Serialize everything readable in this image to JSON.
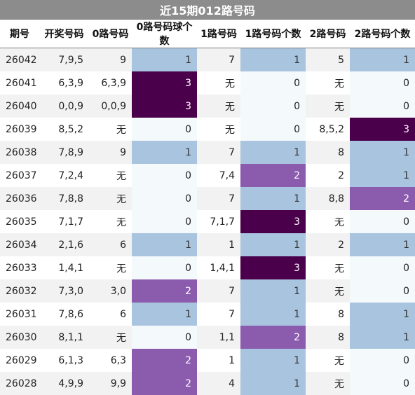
{
  "title": "近15期012路号码",
  "headers": [
    "期号",
    "开奖号码",
    "0路号码",
    "0路号码球个数",
    "1路号码",
    "1路号码个数",
    "2路号码",
    "2路号码个数"
  ],
  "rows": [
    [
      "26042",
      "7,9,5",
      "9",
      "1",
      "7",
      "1",
      "5",
      "1"
    ],
    [
      "26041",
      "6,3,9",
      "6,3,9",
      "3",
      "无",
      "0",
      "无",
      "0"
    ],
    [
      "26040",
      "0,0,9",
      "0,0,9",
      "3",
      "无",
      "0",
      "无",
      "0"
    ],
    [
      "26039",
      "8,5,2",
      "无",
      "0",
      "无",
      "0",
      "8,5,2",
      "3"
    ],
    [
      "26038",
      "7,8,9",
      "9",
      "1",
      "7",
      "1",
      "8",
      "1"
    ],
    [
      "26037",
      "7,2,4",
      "无",
      "0",
      "7,4",
      "2",
      "2",
      "1"
    ],
    [
      "26036",
      "7,8,8",
      "无",
      "0",
      "7",
      "1",
      "8,8",
      "2"
    ],
    [
      "26035",
      "7,1,7",
      "无",
      "0",
      "7,1,7",
      "3",
      "无",
      "0"
    ],
    [
      "26034",
      "2,1,6",
      "6",
      "1",
      "1",
      "1",
      "2",
      "1"
    ],
    [
      "26033",
      "1,4,1",
      "无",
      "0",
      "1,4,1",
      "3",
      "无",
      "0"
    ],
    [
      "26032",
      "7,3,0",
      "3,0",
      "2",
      "7",
      "1",
      "无",
      "0"
    ],
    [
      "26031",
      "7,8,6",
      "6",
      "1",
      "7",
      "1",
      "8",
      "1"
    ],
    [
      "26030",
      "8,1,1",
      "无",
      "0",
      "1,1",
      "2",
      "8",
      "1"
    ],
    [
      "26029",
      "6,1,3",
      "6,3",
      "2",
      "1",
      "1",
      "无",
      "0"
    ],
    [
      "26028",
      "4,9,9",
      "9,9",
      "2",
      "4",
      "1",
      "无",
      "0"
    ]
  ],
  "count_colors": {
    "0": "#f4f9fb",
    "1": "#a9c4de",
    "2": "#8b5bae",
    "3": "#4a004a"
  },
  "header_color": "#8c8c8c"
}
